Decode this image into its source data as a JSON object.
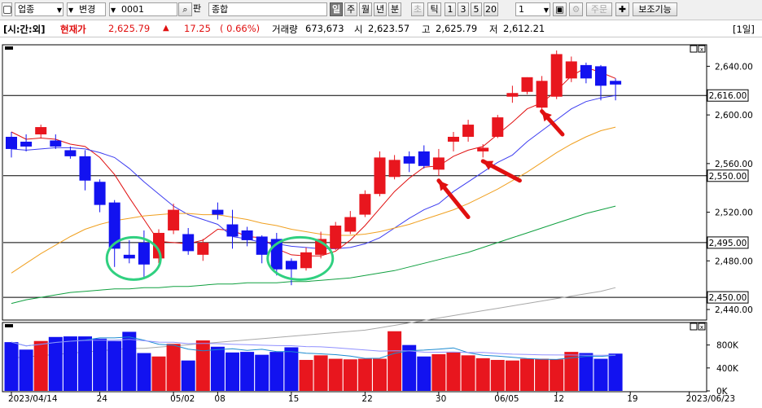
{
  "toolbar": {
    "market_select": "업종",
    "change_select": "변경",
    "code_input": "0001",
    "search_label": "판",
    "name_input": "종합",
    "periods": [
      "일",
      "주",
      "월",
      "년",
      "분",
      "초",
      "틱"
    ],
    "active_period": "일",
    "disabled_period": "초",
    "nums": [
      "1",
      "3",
      "5",
      "20"
    ],
    "count_select": "1",
    "order_label": "주문",
    "aux_label": "보조기능"
  },
  "info": {
    "tag": "[시:간:외]",
    "price_label": "현재가",
    "price": "2,625.79",
    "change": "17.25",
    "change_pct": "( 0.66%)",
    "volume_label": "거래량",
    "volume": "673,673",
    "open_label": "시",
    "open": "2,623.57",
    "high_label": "고",
    "high": "2,625.79",
    "low_label": "저",
    "low": "2,612.21",
    "period_tag": "[1일]"
  },
  "colors": {
    "up": "#e8161e",
    "down": "#1212f0",
    "ma5": "#e01010",
    "ma10": "#3c3cf0",
    "ma20": "#f0a020",
    "ma60": "#10a040",
    "ma120": "#a8a8a8",
    "annot": "#e01010",
    "circle": "#30d080"
  },
  "chart_data": {
    "type": "candlestick",
    "dates": [
      "04/14",
      "04/17",
      "04/18",
      "04/19",
      "04/20",
      "04/21",
      "04/24",
      "04/25",
      "04/26",
      "04/27",
      "04/28",
      "05/02",
      "05/03",
      "05/04",
      "05/08",
      "05/09",
      "05/10",
      "05/11",
      "05/12",
      "05/15",
      "05/16",
      "05/17",
      "05/18",
      "05/19",
      "05/22",
      "05/23",
      "05/24",
      "05/25",
      "05/26",
      "05/30",
      "05/31",
      "06/01",
      "06/02",
      "06/05",
      "06/07",
      "06/08",
      "06/09",
      "06/12",
      "06/13",
      "06/14",
      "06/15",
      "06/16"
    ],
    "open": [
      2582,
      2578,
      2584,
      2579,
      2571,
      2566,
      2545,
      2528,
      2485,
      2495,
      2482,
      2505,
      2502,
      2485,
      2522,
      2510,
      2505,
      2500,
      2498,
      2480,
      2474,
      2485,
      2490,
      2504,
      2518,
      2535,
      2549,
      2566,
      2570,
      2555,
      2578,
      2582,
      2570,
      2582,
      2615,
      2619,
      2606,
      2615,
      2630,
      2641,
      2640,
      2628
    ],
    "close": [
      2572,
      2574,
      2590,
      2574,
      2566,
      2546,
      2526,
      2490,
      2482,
      2477,
      2503,
      2522,
      2488,
      2495,
      2518,
      2500,
      2497,
      2485,
      2473,
      2473,
      2487,
      2498,
      2509,
      2516,
      2535,
      2565,
      2563,
      2560,
      2558,
      2565,
      2582,
      2592,
      2573,
      2598,
      2618,
      2631,
      2628,
      2650,
      2644,
      2630,
      2624,
      2625
    ],
    "high": [
      2586,
      2584,
      2592,
      2584,
      2574,
      2571,
      2547,
      2530,
      2497,
      2505,
      2506,
      2527,
      2507,
      2498,
      2528,
      2522,
      2508,
      2501,
      2503,
      2482,
      2491,
      2504,
      2512,
      2521,
      2538,
      2570,
      2567,
      2570,
      2575,
      2572,
      2586,
      2596,
      2576,
      2600,
      2624,
      2631,
      2632,
      2653,
      2648,
      2643,
      2641,
      2630
    ],
    "low": [
      2565,
      2570,
      2581,
      2572,
      2564,
      2538,
      2520,
      2475,
      2478,
      2465,
      2478,
      2502,
      2485,
      2480,
      2514,
      2490,
      2492,
      2478,
      2468,
      2460,
      2472,
      2482,
      2489,
      2502,
      2516,
      2533,
      2547,
      2553,
      2556,
      2550,
      2570,
      2578,
      2565,
      2581,
      2610,
      2617,
      2603,
      2613,
      2627,
      2626,
      2612,
      2612
    ],
    "volume": [
      850000,
      720000,
      870000,
      940000,
      950000,
      950000,
      910000,
      870000,
      1030000,
      660000,
      600000,
      820000,
      530000,
      880000,
      770000,
      670000,
      680000,
      630000,
      680000,
      760000,
      540000,
      620000,
      560000,
      550000,
      560000,
      560000,
      1040000,
      800000,
      600000,
      640000,
      670000,
      620000,
      570000,
      540000,
      530000,
      560000,
      560000,
      550000,
      680000,
      660000,
      560000,
      650000
    ],
    "ma": [
      {
        "name": "MA5",
        "values": [
          2586,
          2580,
          2581,
          2580,
          2576,
          2574,
          2565,
          2551,
          2532,
          2514,
          2496,
          2495,
          2494,
          2497,
          2506,
          2505,
          2500,
          2499,
          2490,
          2485,
          2484,
          2484,
          2488,
          2497,
          2509,
          2523,
          2537,
          2548,
          2557,
          2558,
          2566,
          2571,
          2574,
          2584,
          2594,
          2605,
          2610,
          2620,
          2632,
          2639,
          2635,
          2630
        ]
      },
      {
        "name": "MA10",
        "values": [
          2572,
          2571,
          2572,
          2573,
          2573,
          2572,
          2569,
          2565,
          2556,
          2545,
          2535,
          2525,
          2518,
          2514,
          2510,
          2500,
          2498,
          2495,
          2494,
          2492,
          2491,
          2490,
          2490,
          2491,
          2494,
          2499,
          2507,
          2515,
          2522,
          2527,
          2537,
          2545,
          2553,
          2561,
          2567,
          2578,
          2587,
          2596,
          2605,
          2611,
          2614,
          2616
        ]
      },
      {
        "name": "MA20",
        "values": [
          2470,
          2478,
          2486,
          2493,
          2500,
          2506,
          2510,
          2513,
          2515,
          2517,
          2518,
          2519,
          2519,
          2518,
          2518,
          2516,
          2514,
          2511,
          2509,
          2506,
          2504,
          2502,
          2501,
          2501,
          2502,
          2504,
          2507,
          2510,
          2514,
          2518,
          2522,
          2527,
          2533,
          2539,
          2546,
          2553,
          2561,
          2569,
          2576,
          2582,
          2587,
          2590
        ]
      },
      {
        "name": "MA60",
        "values": [
          2445,
          2448,
          2450,
          2452,
          2454,
          2455,
          2456,
          2457,
          2457,
          2458,
          2458,
          2459,
          2459,
          2460,
          2461,
          2461,
          2462,
          2462,
          2462,
          2463,
          2463,
          2464,
          2465,
          2466,
          2468,
          2470,
          2472,
          2475,
          2478,
          2481,
          2484,
          2487,
          2491,
          2495,
          2499,
          2503,
          2507,
          2511,
          2515,
          2519,
          2522,
          2525
        ]
      },
      {
        "name": "MA120",
        "values": [
          2400,
          2401,
          2402,
          2403,
          2404,
          2405,
          2406,
          2407,
          2408,
          2408,
          2409,
          2410,
          2411,
          2412,
          2413,
          2414,
          2415,
          2416,
          2417,
          2418,
          2419,
          2420,
          2421,
          2422,
          2423,
          2425,
          2427,
          2429,
          2431,
          2433,
          2435,
          2437,
          2439,
          2441,
          2443,
          2445,
          2447,
          2449,
          2451,
          2453,
          2455,
          2458
        ]
      }
    ],
    "hlines": [
      2616,
      2550,
      2495,
      2450
    ],
    "hline_labels": [
      "2,616.00",
      "2,550.00",
      "2,495.00",
      "2,450.00"
    ],
    "y_ticks": [
      "2,640.00",
      "2,600.00",
      "2,560.00",
      "2,520.00",
      "2,480.00",
      "2,440.00"
    ],
    "y_tick_values": [
      2640,
      2600,
      2560,
      2520,
      2480,
      2440
    ],
    "ylim": [
      2432,
      2657
    ],
    "vol_ticks": [
      "800K",
      "400K",
      "0K"
    ],
    "vol_tick_values": [
      800000,
      400000,
      0
    ],
    "vol_max": 1150000,
    "x_labels": [
      "2023/04/14",
      "24",
      "05/02",
      "08",
      "15",
      "22",
      "30",
      "06/05",
      "12",
      "19",
      "2023/06/23"
    ],
    "x_label_index": [
      0,
      6,
      11,
      14,
      19,
      24,
      29,
      33,
      37,
      42,
      46
    ]
  }
}
